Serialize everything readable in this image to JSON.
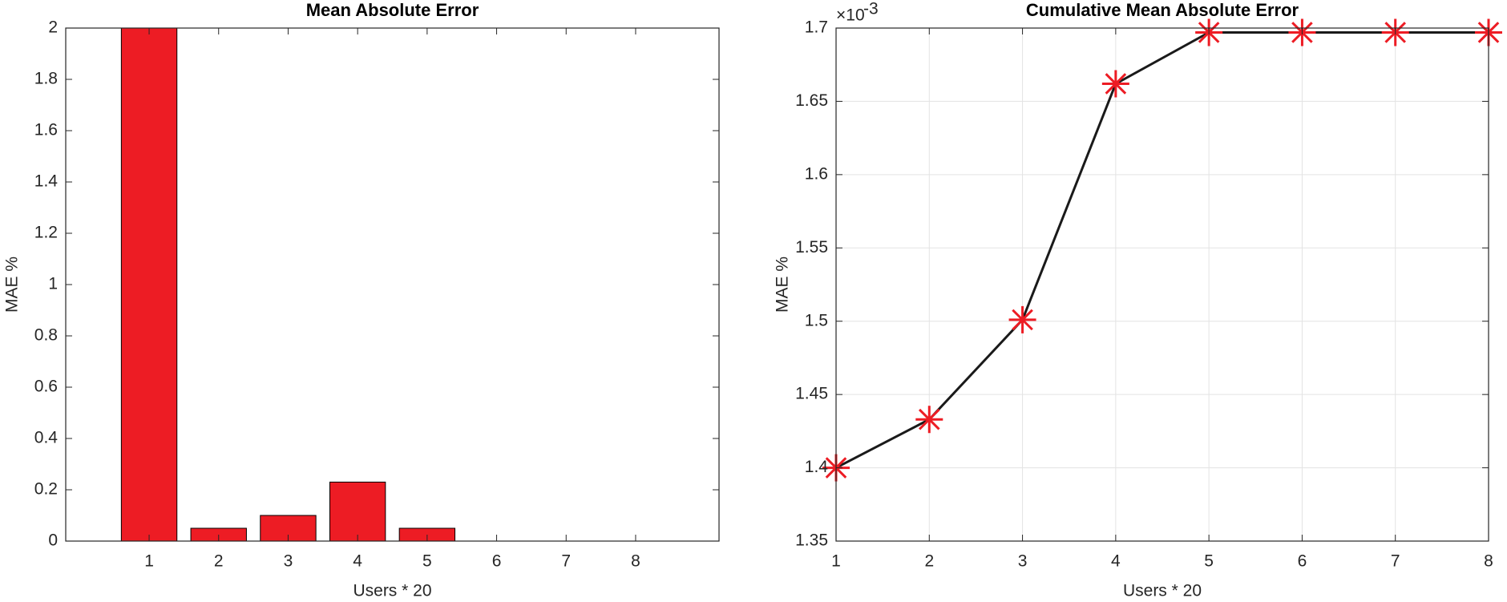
{
  "chart_data": [
    {
      "type": "bar",
      "title": "Mean Absolute Error",
      "xlabel": "Users * 20",
      "ylabel": "MAE %",
      "x": [
        1,
        2,
        3,
        4,
        5,
        6,
        7,
        8
      ],
      "values": [
        2,
        0.05,
        0.1,
        0.23,
        0.05,
        0,
        0,
        0
      ],
      "color": "#ed1c24",
      "xlim": [
        -0.2,
        9.2
      ],
      "xticks": [
        1,
        2,
        3,
        4,
        5,
        6,
        7,
        8
      ],
      "ylim": [
        0,
        2
      ],
      "yticks": [
        0,
        0.2,
        0.4,
        0.6,
        0.8,
        1,
        1.2,
        1.4,
        1.6,
        1.8,
        2
      ],
      "grid": false
    },
    {
      "type": "line",
      "title": "Cumulative Mean Absolute Error",
      "xlabel": "Users * 20",
      "ylabel": "MAE %",
      "y_exponent_base": "×10",
      "y_exponent": "-3",
      "x": [
        1,
        2,
        3,
        4,
        5,
        6,
        7,
        8
      ],
      "values": [
        1.4,
        1.433,
        1.501,
        1.662,
        1.697,
        1.697,
        1.697,
        1.697
      ],
      "color": "#1a1a1a",
      "marker_color": "#ed1c24",
      "xlim": [
        1,
        8
      ],
      "xticks": [
        1,
        2,
        3,
        4,
        5,
        6,
        7,
        8
      ],
      "ylim": [
        1.35,
        1.7
      ],
      "yticks": [
        1.35,
        1.4,
        1.45,
        1.5,
        1.55,
        1.6,
        1.65,
        1.7
      ],
      "grid": true
    }
  ]
}
